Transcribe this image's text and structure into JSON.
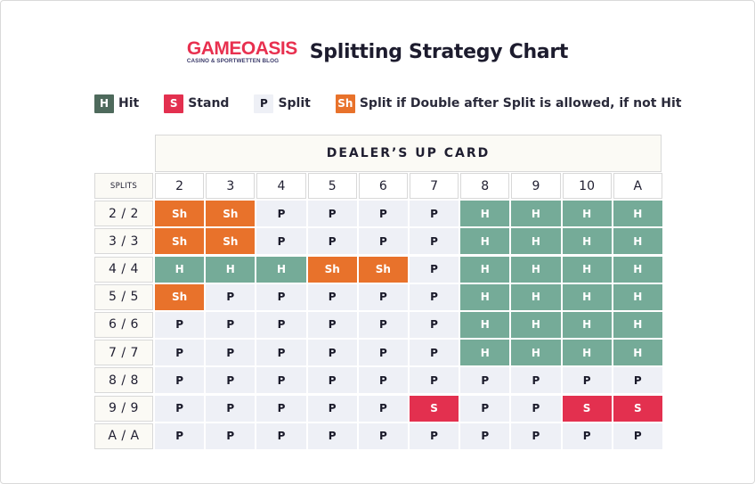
{
  "brand": {
    "logo_main": "GAMEOASIS",
    "logo_sub": "CASINO & SPORTWETTEN BLOG"
  },
  "title": "Splitting Strategy Chart",
  "legend": [
    {
      "symbol": "H",
      "label": "Hit",
      "kind": "hit"
    },
    {
      "symbol": "S",
      "label": "Stand",
      "kind": "stand"
    },
    {
      "symbol": "P",
      "label": "Split",
      "kind": "split"
    },
    {
      "symbol": "Sh",
      "label": "Split if Double after Split is allowed, if not Hit",
      "kind": "sh"
    }
  ],
  "colors": {
    "hit": "#75ab98",
    "hit_legend": "#4e6a5c",
    "stand": "#e3304f",
    "split": "#eef0f6",
    "split_double": "#e8722b",
    "brand_red": "#e8304f"
  },
  "table": {
    "dealer_header": "DEALER’S UP CARD",
    "corner_label": "SPLITS",
    "columns": [
      "2",
      "3",
      "4",
      "5",
      "6",
      "7",
      "8",
      "9",
      "10",
      "A"
    ],
    "rows": [
      {
        "label": "2 / 2",
        "values": [
          "Sh",
          "Sh",
          "P",
          "P",
          "P",
          "P",
          "H",
          "H",
          "H",
          "H"
        ]
      },
      {
        "label": "3 / 3",
        "values": [
          "Sh",
          "Sh",
          "P",
          "P",
          "P",
          "P",
          "H",
          "H",
          "H",
          "H"
        ]
      },
      {
        "label": "4 / 4",
        "values": [
          "H",
          "H",
          "H",
          "Sh",
          "Sh",
          "P",
          "H",
          "H",
          "H",
          "H"
        ]
      },
      {
        "label": "5 / 5",
        "values": [
          "Sh",
          "P",
          "P",
          "P",
          "P",
          "P",
          "H",
          "H",
          "H",
          "H"
        ]
      },
      {
        "label": "6 / 6",
        "values": [
          "P",
          "P",
          "P",
          "P",
          "P",
          "P",
          "H",
          "H",
          "H",
          "H"
        ]
      },
      {
        "label": "7 / 7",
        "values": [
          "P",
          "P",
          "P",
          "P",
          "P",
          "P",
          "H",
          "H",
          "H",
          "H"
        ]
      },
      {
        "label": "8 / 8",
        "values": [
          "P",
          "P",
          "P",
          "P",
          "P",
          "P",
          "P",
          "P",
          "P",
          "P"
        ]
      },
      {
        "label": "9 / 9",
        "values": [
          "P",
          "P",
          "P",
          "P",
          "P",
          "S",
          "P",
          "P",
          "S",
          "S"
        ]
      },
      {
        "label": "A / A",
        "values": [
          "P",
          "P",
          "P",
          "P",
          "P",
          "P",
          "P",
          "P",
          "P",
          "P"
        ]
      }
    ]
  }
}
